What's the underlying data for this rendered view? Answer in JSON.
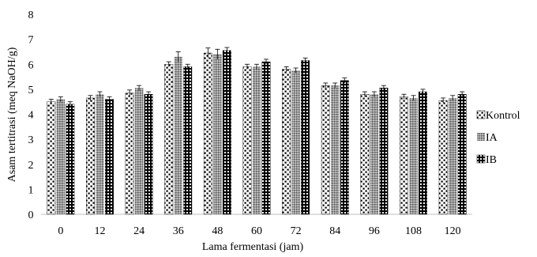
{
  "chart_data": {
    "type": "bar",
    "title": "",
    "xlabel": "Lama fermentasi (jam)",
    "ylabel": "Asam tertitrasi (meq NaOH/g)",
    "ylim": [
      0,
      8
    ],
    "yticks": [
      0,
      1,
      2,
      3,
      4,
      5,
      6,
      7,
      8
    ],
    "grid": false,
    "legend_position": "right",
    "error_bars": true,
    "categories": [
      "0",
      "12",
      "24",
      "36",
      "48",
      "60",
      "72",
      "84",
      "96",
      "108",
      "120"
    ],
    "series": [
      {
        "name": "Kontrol",
        "pattern": "dots",
        "values": [
          4.5,
          4.65,
          4.85,
          6.0,
          6.45,
          5.9,
          5.8,
          5.15,
          4.8,
          4.7,
          4.55
        ],
        "errors": [
          0.1,
          0.1,
          0.12,
          0.1,
          0.2,
          0.1,
          0.1,
          0.1,
          0.1,
          0.1,
          0.1
        ]
      },
      {
        "name": "IA",
        "pattern": "crosshatch",
        "values": [
          4.6,
          4.8,
          5.05,
          6.3,
          6.4,
          5.9,
          5.75,
          5.15,
          4.8,
          4.65,
          4.65
        ],
        "errors": [
          0.1,
          0.1,
          0.1,
          0.2,
          0.2,
          0.1,
          0.1,
          0.1,
          0.1,
          0.1,
          0.1
        ]
      },
      {
        "name": "IB",
        "pattern": "checker",
        "values": [
          4.4,
          4.6,
          4.8,
          5.9,
          6.55,
          6.1,
          6.15,
          5.35,
          5.05,
          4.9,
          4.8
        ],
        "errors": [
          0.1,
          0.1,
          0.1,
          0.1,
          0.12,
          0.1,
          0.1,
          0.1,
          0.1,
          0.1,
          0.1
        ]
      }
    ]
  }
}
